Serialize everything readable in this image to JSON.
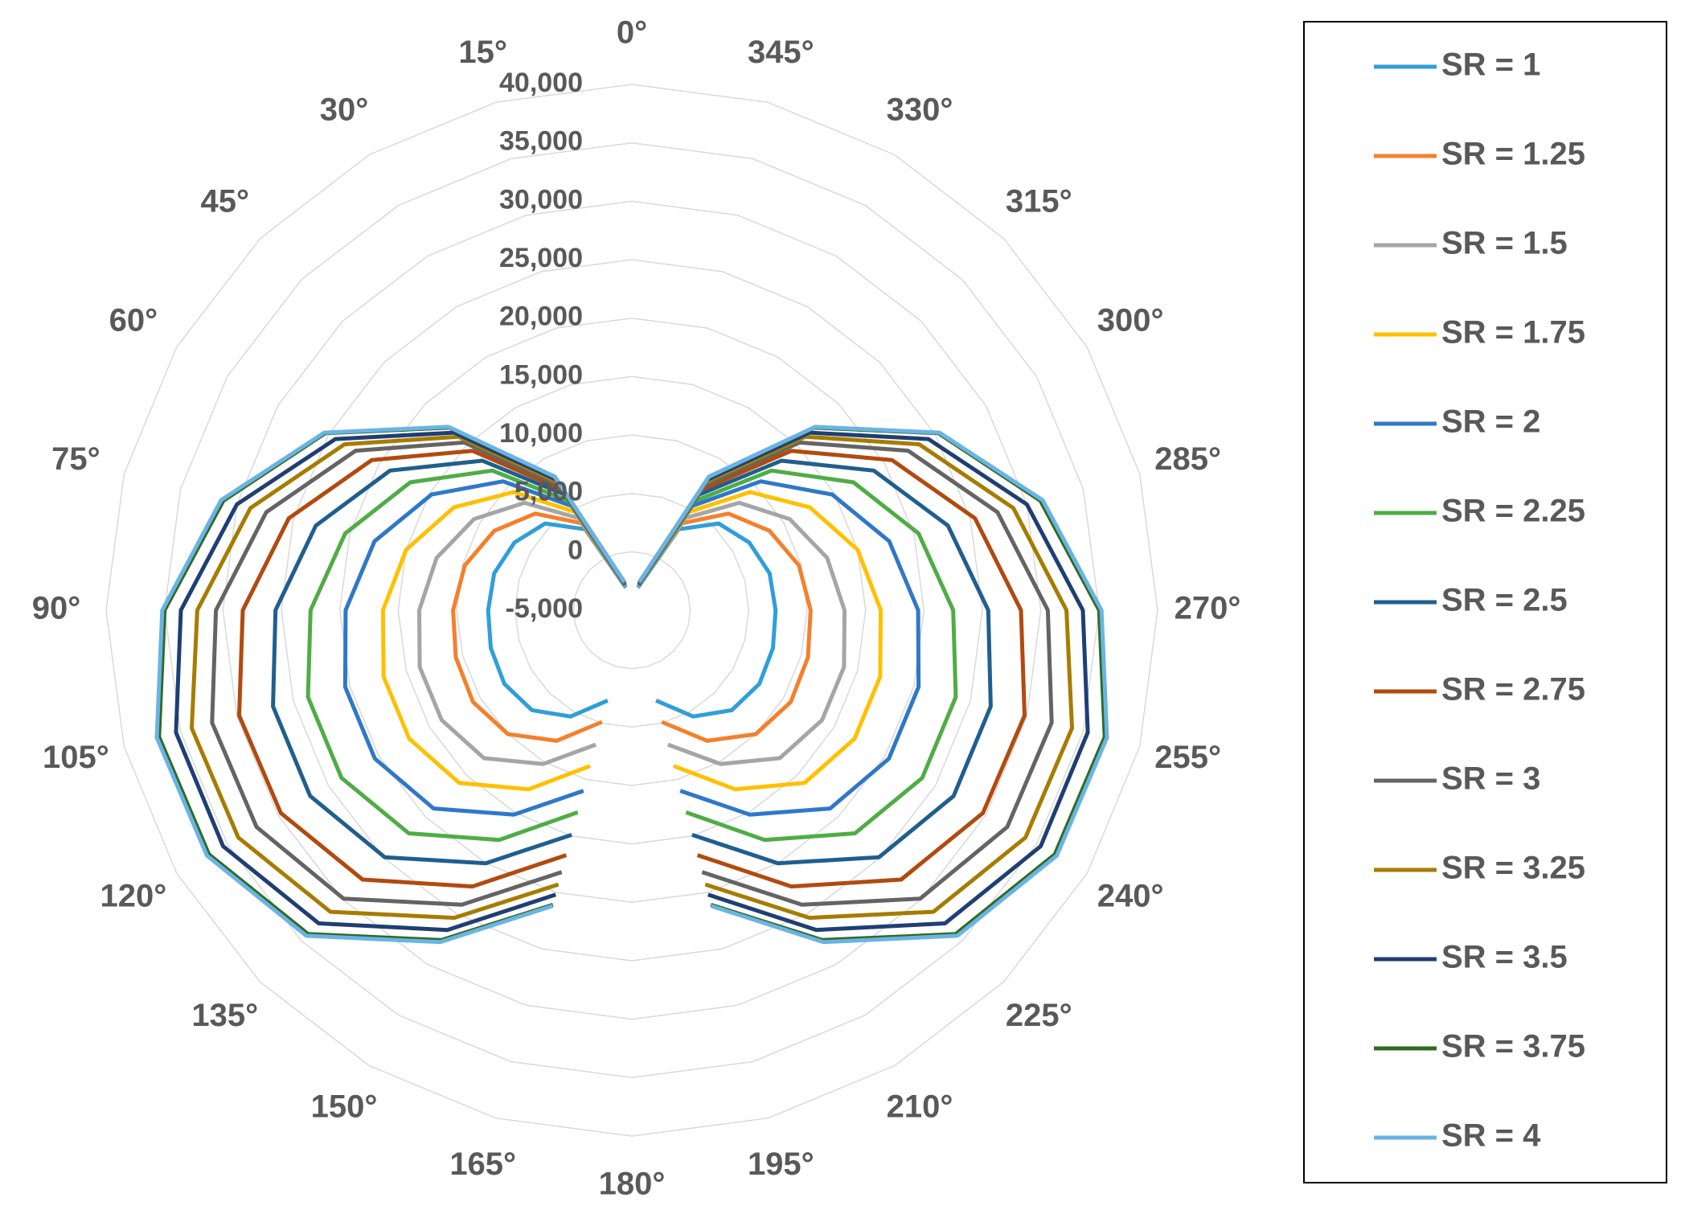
{
  "chart_data": {
    "type": "radar",
    "categories": [
      "0°",
      "345°",
      "330°",
      "315°",
      "300°",
      "285°",
      "270°",
      "255°",
      "240°",
      "225°",
      "210°",
      "195°",
      "180°",
      "165°",
      "150°",
      "135°",
      "120°",
      "105°",
      "90°",
      "75°",
      "60°",
      "45°",
      "30°",
      "15°"
    ],
    "ylim": [
      -5000,
      40000
    ],
    "yticks": [
      {
        "value": -5000,
        "label": "-5,000"
      },
      0,
      {
        "value": 5000,
        "label": "5,000"
      },
      {
        "value": 10000,
        "label": "10,000"
      },
      {
        "value": 15000,
        "label": "15,000"
      },
      {
        "value": 20000,
        "label": "20,000"
      },
      {
        "value": 25000,
        "label": "25,000"
      },
      {
        "value": 30000,
        "label": "30,000"
      },
      {
        "value": 35000,
        "label": "35,000"
      },
      {
        "value": 40000,
        "label": "40,000"
      }
    ],
    "grid": true,
    "legend": "right",
    "series": [
      {
        "name": "SR = 1",
        "color": "#2E9FD9",
        "values": [
          null,
          -3000,
          3000,
          5500,
          6600,
          7200,
          7300,
          7500,
          7600,
          7100,
          5500,
          3000,
          null,
          3000,
          5500,
          7100,
          7600,
          7500,
          7300,
          7200,
          6600,
          5500,
          3000,
          -3000
        ]
      },
      {
        "name": "SR = 1.25",
        "color": "#F4802C",
        "values": [
          null,
          -2900,
          3600,
          6700,
          8600,
          9800,
          10300,
          10600,
          10700,
          10000,
          7900,
          4900,
          null,
          4900,
          7900,
          10000,
          10700,
          10600,
          10300,
          9800,
          8600,
          6700,
          3600,
          -2900
        ]
      },
      {
        "name": "SR = 1.5",
        "color": "#A5A5A5",
        "values": [
          null,
          -2900,
          4100,
          8000,
          10600,
          12300,
          13200,
          13800,
          13800,
          12900,
          10200,
          6900,
          null,
          6900,
          10200,
          12900,
          13800,
          13800,
          13200,
          12300,
          10600,
          8000,
          4100,
          -2900
        ]
      },
      {
        "name": "SR = 1.75",
        "color": "#FFC000",
        "values": [
          null,
          -2800,
          4700,
          9300,
          12600,
          15000,
          16300,
          17000,
          17000,
          15900,
          12700,
          8800,
          null,
          8800,
          12700,
          15900,
          17000,
          17000,
          16300,
          15000,
          12600,
          9300,
          4700,
          -2800
        ]
      },
      {
        "name": "SR = 2",
        "color": "#2F78C9",
        "values": [
          null,
          -2800,
          5300,
          10600,
          14800,
          17800,
          19500,
          20400,
          20400,
          19000,
          15200,
          11000,
          null,
          11000,
          15200,
          19000,
          20400,
          20400,
          19500,
          17800,
          14800,
          10600,
          5300,
          -2800
        ]
      },
      {
        "name": "SR = 2.25",
        "color": "#4EAD45",
        "values": [
          null,
          -2700,
          5800,
          11900,
          16900,
          20400,
          22500,
          23700,
          23700,
          22000,
          17700,
          12900,
          null,
          12900,
          17700,
          22000,
          23700,
          23700,
          22500,
          20400,
          16900,
          11900,
          5800,
          -2700
        ]
      },
      {
        "name": "SR = 2.5",
        "color": "#1F5F8F",
        "values": [
          null,
          -2700,
          6400,
          13100,
          18900,
          23000,
          25500,
          26800,
          26800,
          24900,
          20000,
          14900,
          null,
          14900,
          20000,
          24900,
          26800,
          26800,
          25500,
          23000,
          18900,
          13100,
          6400,
          -2700
        ]
      },
      {
        "name": "SR = 2.75",
        "color": "#B24A0F",
        "values": [
          null,
          -2600,
          6900,
          14300,
          20700,
          25400,
          28300,
          29800,
          29700,
          27600,
          22300,
          16700,
          null,
          16700,
          22300,
          27600,
          29700,
          29800,
          28300,
          25400,
          20700,
          14300,
          6900,
          -2600
        ]
      },
      {
        "name": "SR = 3",
        "color": "#646464",
        "values": [
          null,
          -2600,
          7300,
          15300,
          22300,
          27400,
          30600,
          32200,
          32100,
          29900,
          24100,
          18200,
          null,
          18200,
          24100,
          29900,
          32100,
          32200,
          30600,
          27400,
          22300,
          15300,
          7300,
          -2600
        ]
      },
      {
        "name": "SR = 3.25",
        "color": "#A67C00",
        "values": [
          null,
          -2600,
          7600,
          16000,
          23400,
          28800,
          32200,
          34000,
          33900,
          31500,
          25400,
          19300,
          null,
          19300,
          25400,
          31500,
          33900,
          34000,
          32200,
          28800,
          23400,
          16000,
          7600,
          -2600
        ]
      },
      {
        "name": "SR = 3.5",
        "color": "#1F3F73",
        "values": [
          null,
          -2500,
          7900,
          16500,
          24300,
          30000,
          33600,
          35400,
          35400,
          32900,
          26600,
          20200,
          null,
          20200,
          26600,
          32900,
          35400,
          35400,
          33600,
          30000,
          24300,
          16500,
          7900,
          -2500
        ]
      },
      {
        "name": "SR = 3.75",
        "color": "#2E6B1F",
        "values": [
          null,
          -2500,
          8200,
          17100,
          25300,
          31200,
          35000,
          36900,
          36800,
          34200,
          27600,
          21100,
          null,
          21100,
          27600,
          34200,
          36800,
          36900,
          35000,
          31200,
          25300,
          17100,
          8200,
          -2500
        ]
      },
      {
        "name": "SR = 4",
        "color": "#6AB3E6",
        "values": [
          null,
          -2500,
          8200,
          17200,
          25400,
          31400,
          35200,
          37100,
          37000,
          34400,
          27800,
          21200,
          null,
          21200,
          27800,
          34400,
          37000,
          37100,
          35200,
          31400,
          25400,
          17200,
          8200,
          -2500
        ]
      }
    ]
  }
}
